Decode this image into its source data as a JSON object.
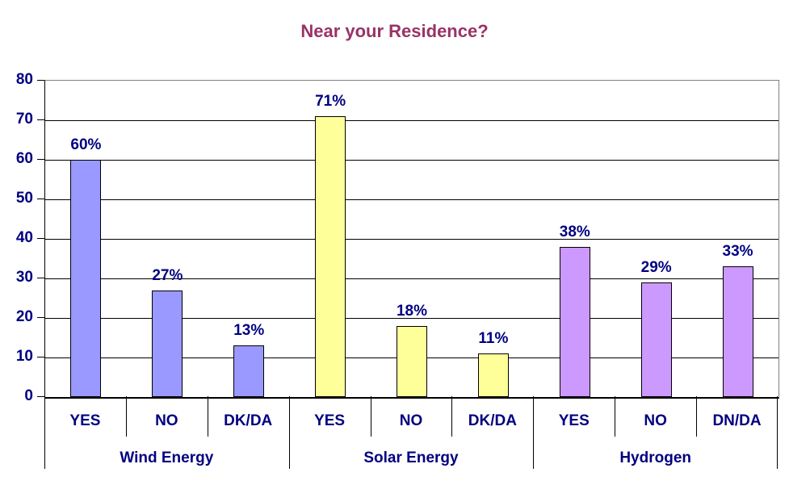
{
  "chart_data": {
    "type": "bar",
    "title": "Near your Residence?",
    "xlabel": "",
    "ylabel": "",
    "ylim": [
      0,
      80
    ],
    "yticks": [
      0,
      10,
      20,
      30,
      40,
      50,
      60,
      70,
      80
    ],
    "grid": true,
    "legend": "none",
    "groups": [
      {
        "label": "Wind Energy",
        "color": "#9999FF",
        "bars": [
          {
            "category": "YES",
            "value": 60,
            "label": "60%"
          },
          {
            "category": "NO",
            "value": 27,
            "label": "27%"
          },
          {
            "category": "DK/DA",
            "value": 13,
            "label": "13%"
          }
        ]
      },
      {
        "label": "Solar Energy",
        "color": "#FFFF99",
        "bars": [
          {
            "category": "YES",
            "value": 71,
            "label": "71%"
          },
          {
            "category": "NO",
            "value": 18,
            "label": "18%"
          },
          {
            "category": "DK/DA",
            "value": 11,
            "label": "11%"
          }
        ]
      },
      {
        "label": "Hydrogen",
        "color": "#CC99FF",
        "bars": [
          {
            "category": "YES",
            "value": 38,
            "label": "38%"
          },
          {
            "category": "NO",
            "value": 29,
            "label": "29%"
          },
          {
            "category": "DN/DA",
            "value": 33,
            "label": "33%"
          }
        ]
      }
    ],
    "colors": {
      "title": "#993366",
      "text": "#000080",
      "gridline": "#000000",
      "plot_border": "#808080",
      "bar_border": "#000000",
      "background": "#FFFFFF"
    }
  }
}
